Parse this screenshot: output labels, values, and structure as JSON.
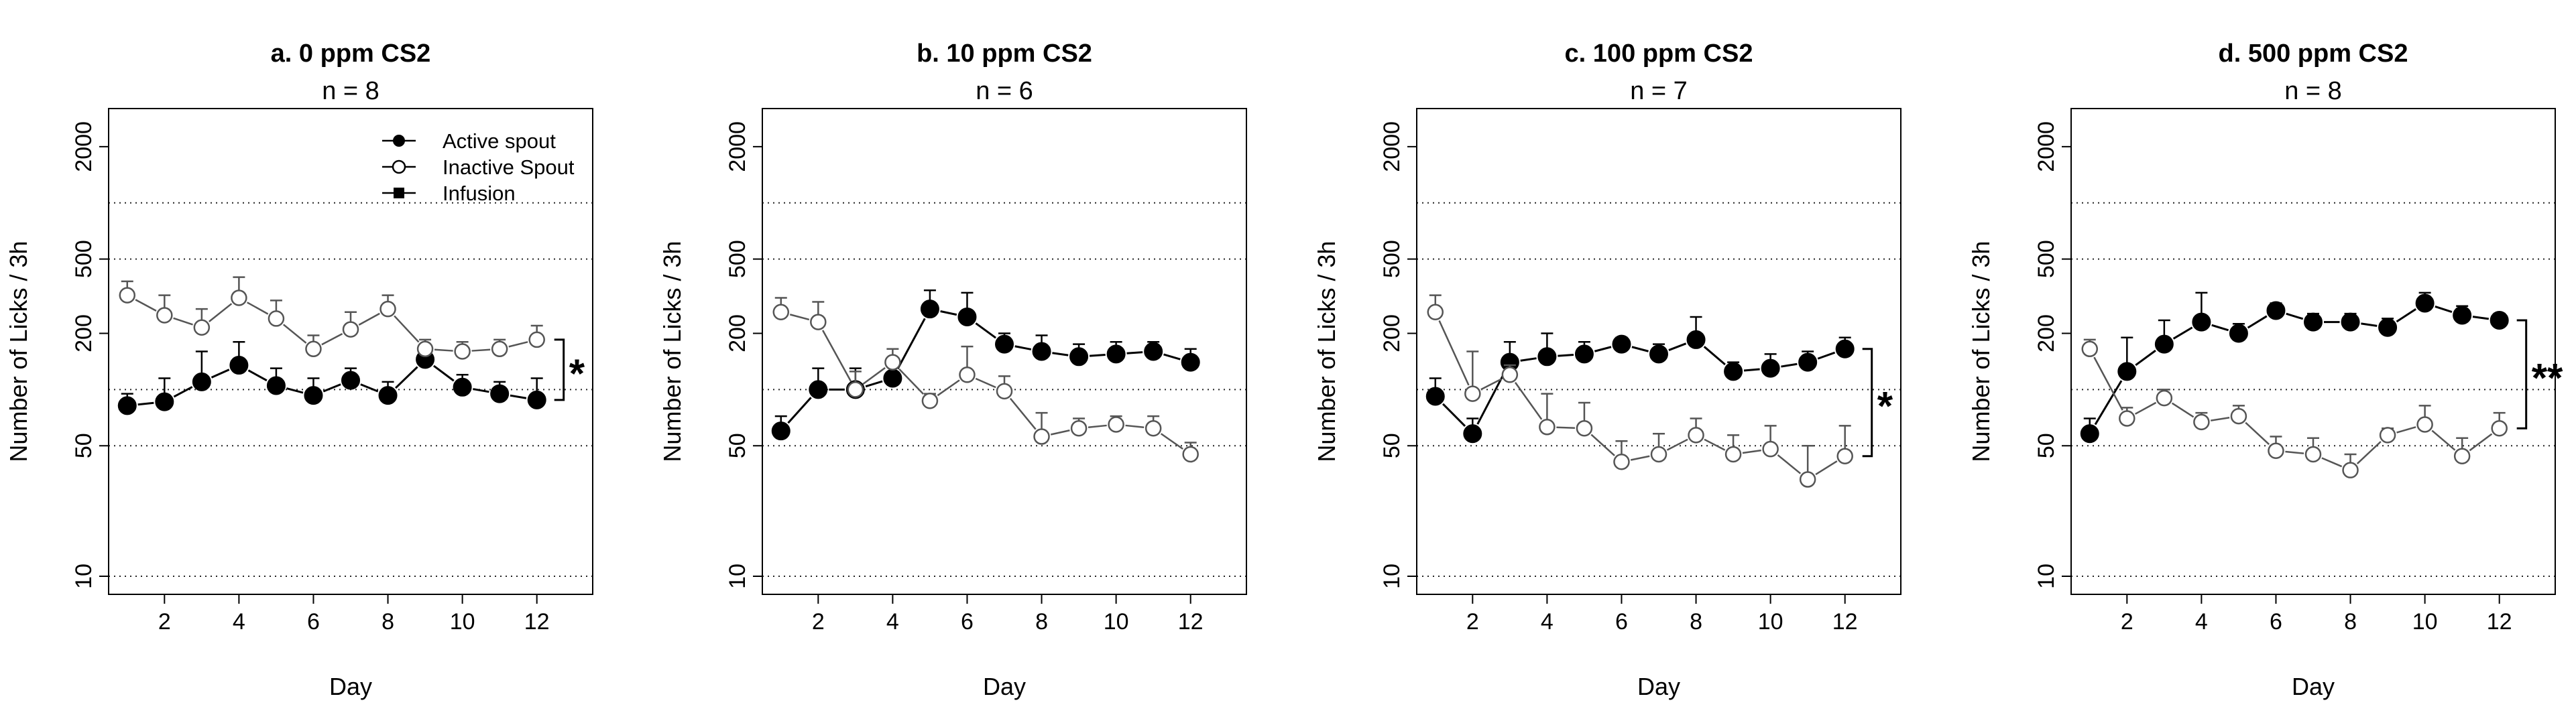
{
  "chart_data": [
    {
      "type": "line",
      "title": "a. 0 ppm CS2",
      "subtitle": "n = 8",
      "xlabel": "Day",
      "ylabel": "Number of Licks / 3h",
      "x_scale": "linear",
      "y_scale": "log",
      "xlim": [
        0.5,
        13.5
      ],
      "ylim": [
        8,
        3200
      ],
      "x_ticks": [
        2,
        4,
        6,
        8,
        10,
        12
      ],
      "y_ticks": [
        10,
        50,
        200,
        500,
        2000
      ],
      "reference_lines": [
        10,
        50,
        100,
        500,
        1000
      ],
      "significance": "*",
      "legend": {
        "position": "top-center",
        "entries": [
          {
            "label": "Active spout",
            "marker": "filled-circle"
          },
          {
            "label": "Inactive Spout",
            "marker": "open-circle"
          },
          {
            "label": "Infusion",
            "marker": "filled-square"
          }
        ]
      },
      "series": [
        {
          "name": "Active spout",
          "marker": "filled-circle",
          "color": "#000000",
          "x": [
            1,
            2,
            3,
            4,
            5,
            6,
            7,
            8,
            9,
            10,
            11,
            12
          ],
          "y": [
            82,
            86,
            110,
            135,
            105,
            93,
            112,
            93,
            145,
            103,
            95,
            88
          ],
          "error_upper": [
            95,
            115,
            160,
            180,
            130,
            115,
            130,
            110,
            160,
            120,
            110,
            115
          ]
        },
        {
          "name": "Inactive Spout",
          "marker": "open-circle",
          "color": "#555555",
          "x": [
            1,
            2,
            3,
            4,
            5,
            6,
            7,
            8,
            9,
            10,
            11,
            12
          ],
          "y": [
            320,
            250,
            215,
            310,
            240,
            165,
            210,
            270,
            165,
            160,
            165,
            185
          ],
          "error_upper": [
            380,
            320,
            270,
            400,
            300,
            195,
            260,
            320,
            185,
            180,
            185,
            220
          ]
        }
      ]
    },
    {
      "type": "line",
      "title": "b. 10 ppm CS2",
      "subtitle": "n = 6",
      "xlabel": "Day",
      "ylabel": "Number of Licks / 3h",
      "x_scale": "linear",
      "y_scale": "log",
      "xlim": [
        0.5,
        13.5
      ],
      "ylim": [
        8,
        3200
      ],
      "x_ticks": [
        2,
        4,
        6,
        8,
        10,
        12
      ],
      "y_ticks": [
        10,
        50,
        200,
        500,
        2000
      ],
      "reference_lines": [
        10,
        50,
        100,
        500,
        1000
      ],
      "significance": "",
      "series": [
        {
          "name": "Active spout",
          "marker": "filled-circle",
          "color": "#000000",
          "x": [
            1,
            2,
            3,
            4,
            5,
            6,
            7,
            8,
            9,
            10,
            11,
            12
          ],
          "y": [
            60,
            100,
            100,
            115,
            270,
            245,
            175,
            160,
            150,
            155,
            160,
            140
          ],
          "error_upper": [
            72,
            130,
            130,
            145,
            340,
            330,
            200,
            195,
            175,
            180,
            180,
            165
          ]
        },
        {
          "name": "Inactive Spout",
          "marker": "open-circle",
          "color": "#555555",
          "x": [
            1,
            2,
            3,
            4,
            5,
            6,
            7,
            8,
            9,
            10,
            11,
            12
          ],
          "y": [
            260,
            230,
            100,
            140,
            87,
            120,
            98,
            56,
            62,
            65,
            62,
            45
          ],
          "error_upper": [
            310,
            295,
            125,
            165,
            95,
            170,
            118,
            75,
            70,
            72,
            72,
            52
          ]
        }
      ]
    },
    {
      "type": "line",
      "title": "c. 100 ppm CS2",
      "subtitle": "n = 7",
      "xlabel": "Day",
      "ylabel": "Number of Licks / 3h",
      "x_scale": "linear",
      "y_scale": "log",
      "xlim": [
        0.5,
        13.5
      ],
      "ylim": [
        8,
        3200
      ],
      "x_ticks": [
        2,
        4,
        6,
        8,
        10,
        12
      ],
      "y_ticks": [
        10,
        50,
        200,
        500,
        2000
      ],
      "reference_lines": [
        10,
        50,
        100,
        500,
        1000
      ],
      "significance": "*",
      "series": [
        {
          "name": "Active spout",
          "marker": "filled-circle",
          "color": "#000000",
          "x": [
            1,
            2,
            3,
            4,
            5,
            6,
            7,
            8,
            9,
            10,
            11,
            12
          ],
          "y": [
            92,
            58,
            140,
            150,
            155,
            175,
            155,
            185,
            125,
            130,
            140,
            165
          ],
          "error_upper": [
            115,
            70,
            180,
            200,
            180,
            190,
            175,
            245,
            140,
            155,
            160,
            190
          ]
        },
        {
          "name": "Inactive Spout",
          "marker": "open-circle",
          "color": "#555555",
          "x": [
            1,
            2,
            3,
            4,
            5,
            6,
            7,
            8,
            9,
            10,
            11,
            12
          ],
          "y": [
            260,
            95,
            120,
            63,
            62,
            41,
            45,
            57,
            45,
            48,
            33,
            44
          ],
          "error_upper": [
            320,
            160,
            135,
            95,
            85,
            53,
            58,
            70,
            57,
            64,
            50,
            64
          ]
        }
      ]
    },
    {
      "type": "line",
      "title": "d. 500 ppm CS2",
      "subtitle": "n = 8",
      "xlabel": "Day",
      "ylabel": "Number of Licks / 3h",
      "x_scale": "linear",
      "y_scale": "log",
      "xlim": [
        0.5,
        13.5
      ],
      "ylim": [
        8,
        3200
      ],
      "x_ticks": [
        2,
        4,
        6,
        8,
        10,
        12
      ],
      "y_ticks": [
        10,
        50,
        200,
        500,
        2000
      ],
      "reference_lines": [
        10,
        50,
        100,
        500,
        1000
      ],
      "significance": "**",
      "series": [
        {
          "name": "Active spout",
          "marker": "filled-circle",
          "color": "#000000",
          "x": [
            1,
            2,
            3,
            4,
            5,
            6,
            7,
            8,
            9,
            10,
            11,
            12
          ],
          "y": [
            58,
            125,
            175,
            230,
            200,
            265,
            230,
            230,
            215,
            290,
            250,
            235
          ],
          "error_upper": [
            70,
            190,
            235,
            330,
            225,
            290,
            255,
            255,
            240,
            330,
            280,
            255
          ]
        },
        {
          "name": "Inactive Spout",
          "marker": "open-circle",
          "color": "#555555",
          "x": [
            1,
            2,
            3,
            4,
            5,
            6,
            7,
            8,
            9,
            10,
            11,
            12
          ],
          "y": [
            165,
            70,
            90,
            67,
            72,
            47,
            45,
            37,
            57,
            65,
            44,
            62
          ],
          "error_upper": [
            185,
            80,
            100,
            75,
            82,
            56,
            55,
            45,
            62,
            82,
            55,
            75
          ]
        }
      ]
    }
  ]
}
